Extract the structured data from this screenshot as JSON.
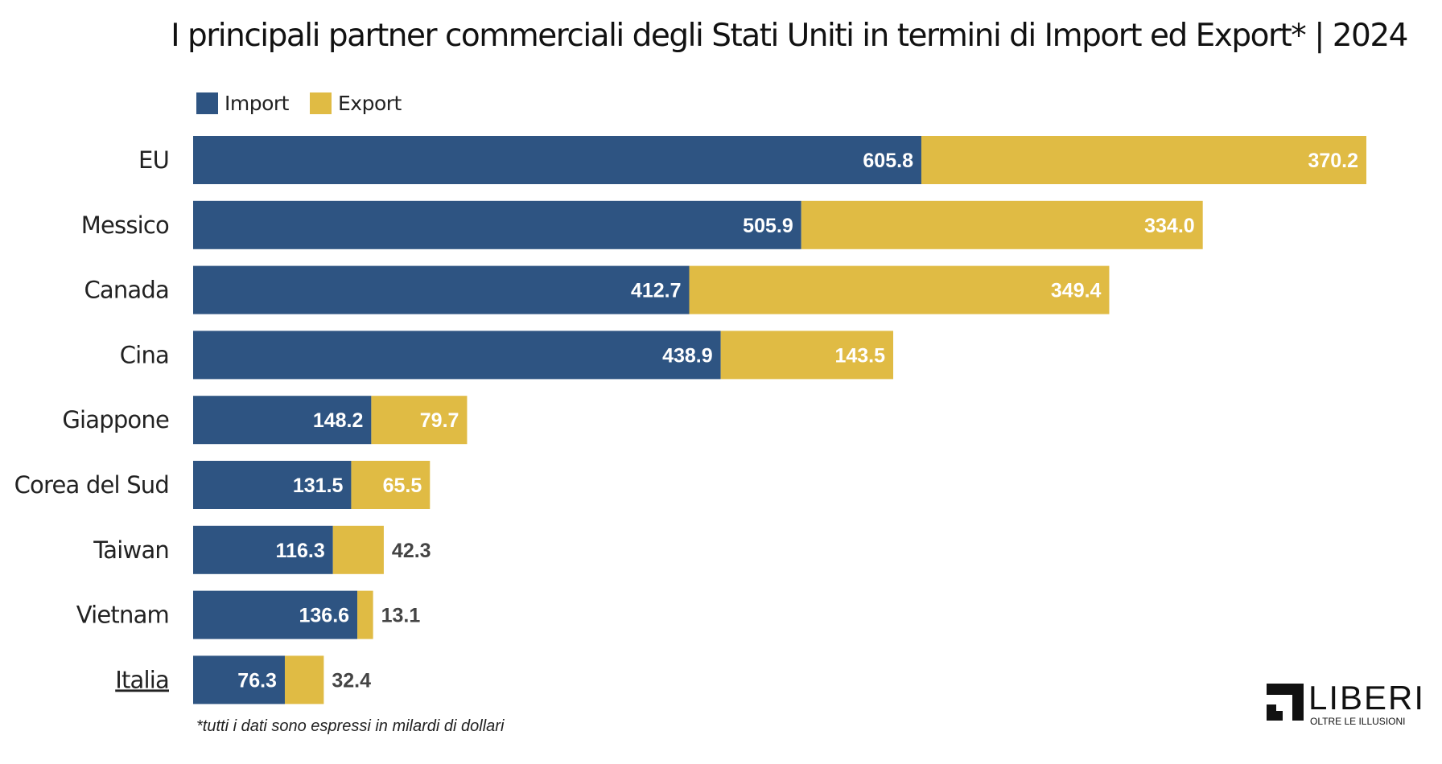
{
  "chart_data": {
    "type": "bar",
    "stacked": true,
    "orientation": "horizontal",
    "title": "I principali partner commerciali degli Stati Uniti in termini di Import ed Export* | 2024",
    "categories": [
      "EU",
      "Messico",
      "Canada",
      "Cina",
      "Giappone",
      "Corea del Sud",
      "Taiwan",
      "Vietnam",
      "Italia"
    ],
    "series": [
      {
        "name": "Import",
        "color": "#2e5482",
        "values": [
          605.8,
          505.9,
          412.7,
          438.9,
          148.2,
          131.5,
          116.3,
          136.6,
          76.3
        ]
      },
      {
        "name": "Export",
        "color": "#e0bb44",
        "values": [
          370.2,
          334.0,
          349.4,
          143.5,
          79.7,
          65.5,
          42.3,
          13.1,
          32.4
        ]
      }
    ],
    "legend_position": "top-left",
    "grid": false,
    "xlim": [
      0,
      976
    ],
    "footnote": "*tutti i dati sono espressi in milardi di dollari",
    "highlighted_category": "Italia"
  },
  "logo": {
    "name": "LIBERI",
    "tagline": "OLTRE LE ILLUSIONI"
  }
}
